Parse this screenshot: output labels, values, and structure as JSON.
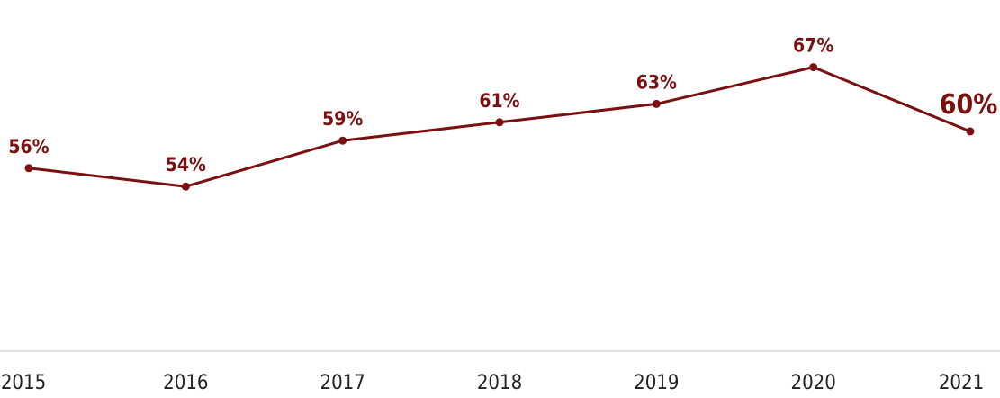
{
  "chart_data": {
    "type": "line",
    "title": "",
    "xlabel": "",
    "ylabel": "",
    "categories": [
      "2015",
      "2016",
      "2017",
      "2018",
      "2019",
      "2020",
      "2021"
    ],
    "series": [
      {
        "values": [
          56,
          54,
          59,
          61,
          63,
          67,
          60
        ],
        "data_labels": [
          "56%",
          "54%",
          "59%",
          "61%",
          "63%",
          "67%",
          "60%"
        ]
      }
    ],
    "ylim": [
      40,
      70
    ],
    "grid": false,
    "legend": "none",
    "colors": {
      "line": "#7a1010",
      "axis": "#d6d6d6",
      "tick_text": "#222222"
    }
  }
}
